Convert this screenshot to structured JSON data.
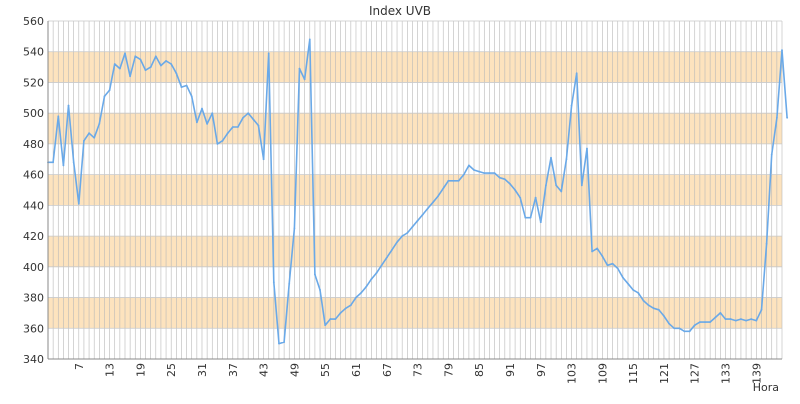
{
  "chart_data": {
    "type": "line",
    "title": "Index UVB",
    "xlabel": "Hora",
    "ylabel": "",
    "xlim": [
      1,
      144
    ],
    "ylim": [
      340,
      560
    ],
    "yticks": [
      340,
      360,
      380,
      400,
      420,
      440,
      460,
      480,
      500,
      520,
      540,
      560
    ],
    "xticks": [
      7,
      13,
      19,
      25,
      31,
      37,
      43,
      49,
      55,
      61,
      67,
      73,
      79,
      85,
      91,
      97,
      103,
      109,
      115,
      121,
      127,
      133,
      139
    ],
    "grid": true,
    "band_color": "#fde3be",
    "line_color": "#6aa9e8",
    "series": [
      {
        "values": [
          468,
          468,
          498,
          466,
          505,
          468,
          441,
          482,
          487,
          484,
          493,
          511,
          515,
          532,
          529,
          539,
          524,
          537,
          535,
          528,
          530,
          537,
          531,
          534,
          532,
          526,
          517,
          518,
          511,
          494,
          503,
          493,
          500,
          480,
          482,
          487,
          491,
          491,
          497,
          500,
          496,
          492,
          470,
          539,
          390,
          350,
          351,
          389,
          425,
          529,
          522,
          548,
          395,
          385,
          362,
          366,
          366,
          370,
          373,
          375,
          380,
          383,
          387,
          392,
          396,
          401,
          406,
          411,
          416,
          420,
          422,
          426,
          430,
          434,
          438,
          442,
          446,
          451,
          456,
          456,
          456,
          460,
          466,
          463,
          462,
          461,
          461,
          461,
          458,
          457,
          454,
          450,
          445,
          432,
          432,
          445,
          429,
          453,
          471,
          453,
          449,
          470,
          505,
          526,
          453,
          477,
          410,
          412,
          407,
          401,
          402,
          399,
          393,
          389,
          385,
          383,
          378,
          375,
          373,
          372,
          368,
          363,
          360,
          360,
          358,
          358,
          362,
          364,
          364,
          364,
          367,
          370,
          366,
          366,
          365,
          366,
          365,
          366,
          365,
          372,
          415,
          473,
          497,
          541,
          497
        ]
      }
    ]
  }
}
